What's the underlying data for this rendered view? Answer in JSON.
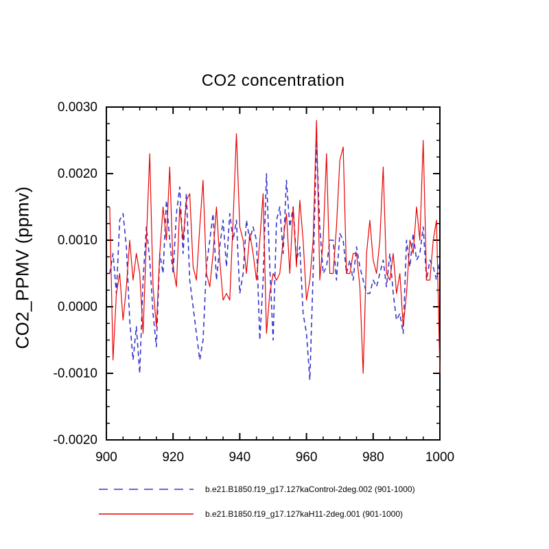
{
  "figure": {
    "title": "CO2 concentration",
    "y_axis_label": "CO2_PPMV  (ppmv)"
  },
  "chart_data": {
    "type": "line",
    "title": "CO2 concentration",
    "xlabel": "",
    "ylabel": "CO2_PPMV (ppmv)",
    "xlim": [
      900,
      1000
    ],
    "ylim": [
      -0.002,
      0.003
    ],
    "x_ticks": [
      900,
      920,
      940,
      960,
      980,
      1000
    ],
    "y_ticks": [
      -0.002,
      -0.001,
      0.0,
      0.001,
      0.002,
      0.003
    ],
    "x_minor_step": 5,
    "y_minor_step": 0.00025,
    "grid": false,
    "legend_position": "bottom",
    "frame_color": "#000000",
    "x": [
      901,
      902,
      903,
      904,
      905,
      906,
      907,
      908,
      909,
      910,
      911,
      912,
      913,
      914,
      915,
      916,
      917,
      918,
      919,
      920,
      921,
      922,
      923,
      924,
      925,
      926,
      927,
      928,
      929,
      930,
      931,
      932,
      933,
      934,
      935,
      936,
      937,
      938,
      939,
      940,
      941,
      942,
      943,
      944,
      945,
      946,
      947,
      948,
      949,
      950,
      951,
      952,
      953,
      954,
      955,
      956,
      957,
      958,
      959,
      960,
      961,
      962,
      963,
      964,
      965,
      966,
      967,
      968,
      969,
      970,
      971,
      972,
      973,
      974,
      975,
      976,
      977,
      978,
      979,
      980,
      981,
      982,
      983,
      984,
      985,
      986,
      987,
      988,
      989,
      990,
      991,
      992,
      993,
      994,
      995,
      996,
      997,
      998,
      999,
      1000
    ],
    "series": [
      {
        "name": "b.e21.B1850.f19_g17.127kaControl-2deg.002 (901-1000)",
        "color": "#3333cc",
        "style": "dashed",
        "values": [
          0.0005,
          0.0008,
          0.0002,
          0.0013,
          0.0014,
          0.0009,
          -0.0002,
          -0.0008,
          -0.0003,
          -0.001,
          0.0004,
          0.0012,
          0.0007,
          -0.0001,
          -0.0006,
          0.0008,
          0.0005,
          0.0016,
          0.001,
          0.0005,
          0.0014,
          0.0018,
          0.0008,
          0.0017,
          0.0004,
          0.0,
          -0.0004,
          -0.0008,
          -0.0005,
          0.0006,
          0.001,
          0.0014,
          0.0004,
          0.0009,
          0.0013,
          0.0006,
          0.0014,
          0.001,
          0.0013,
          0.0002,
          0.0005,
          0.0013,
          0.001,
          0.0012,
          0.001,
          -0.0005,
          0.0004,
          0.002,
          0.0006,
          -0.0005,
          0.0013,
          0.0015,
          0.0008,
          0.0019,
          0.0012,
          0.0015,
          0.0007,
          0.0009,
          -0.0001,
          -0.0004,
          -0.0011,
          0.0005,
          0.0025,
          0.0012,
          0.0005,
          0.0006,
          0.001,
          0.001,
          0.0004,
          0.0011,
          0.001,
          0.0005,
          0.0007,
          0.0004,
          0.0009,
          0.0006,
          0.0004,
          0.0002,
          0.0002,
          0.0004,
          0.0003,
          0.0005,
          0.0007,
          0.0003,
          0.0008,
          0.0002,
          -0.0002,
          -0.0001,
          -0.0004,
          0.001,
          0.0006,
          0.0011,
          0.0007,
          0.0008,
          0.0012,
          0.0004,
          0.0007,
          0.0006,
          0.0004,
          0.0007
        ]
      },
      {
        "name": "b.e21.B1850.f19_g17.127kaH11-2deg.001 (901-1000)",
        "color": "#e80000",
        "style": "solid",
        "values": [
          0.0015,
          -0.0008,
          0.0002,
          0.0005,
          -0.0002,
          0.0003,
          0.001,
          0.0004,
          0.0008,
          0.0005,
          -0.0004,
          0.001,
          0.0023,
          0.0003,
          -0.0003,
          0.0008,
          0.0015,
          0.001,
          0.0021,
          0.0006,
          0.0003,
          0.0015,
          0.001,
          0.0016,
          0.0017,
          0.0006,
          0.0004,
          0.0012,
          0.0019,
          0.0005,
          0.0003,
          0.0008,
          0.0015,
          0.0007,
          0.0001,
          0.0002,
          0.0001,
          0.0013,
          0.0026,
          0.0012,
          0.001,
          0.0005,
          0.0011,
          0.0008,
          0.0004,
          0.001,
          0.0017,
          -0.0004,
          0.0002,
          0.0005,
          0.0004,
          0.0005,
          0.001,
          0.0014,
          0.0005,
          0.0015,
          0.0006,
          0.0016,
          0.001,
          0.0001,
          0.0004,
          0.001,
          0.0028,
          0.0004,
          0.001,
          0.0023,
          0.0005,
          0.0005,
          0.0012,
          0.0022,
          0.0024,
          0.0005,
          0.0005,
          0.0008,
          0.0008,
          0.0003,
          -0.001,
          0.0008,
          0.0013,
          0.0007,
          0.0005,
          0.001,
          0.0021,
          0.0005,
          0.0004,
          0.0008,
          0.0002,
          0.0005,
          -0.0003,
          0.0002,
          0.001,
          0.0008,
          0.0015,
          0.001,
          0.0025,
          0.0004,
          0.0004,
          0.001,
          0.0013,
          -0.001
        ]
      }
    ]
  }
}
